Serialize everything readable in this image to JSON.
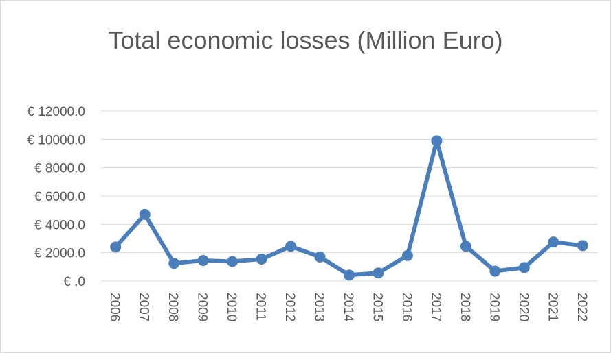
{
  "chart_data": {
    "type": "line",
    "title": "Total economic losses (Million Euro)",
    "xlabel": "",
    "ylabel": "",
    "categories": [
      "2006",
      "2007",
      "2008",
      "2009",
      "2010",
      "2011",
      "2012",
      "2013",
      "2014",
      "2015",
      "2016",
      "2017",
      "2018",
      "2019",
      "2020",
      "2021",
      "2022"
    ],
    "series": [
      {
        "values": [
          2400,
          4700,
          1250,
          1450,
          1380,
          1550,
          2450,
          1700,
          420,
          570,
          1800,
          9900,
          2450,
          700,
          950,
          2750,
          2500
        ]
      }
    ],
    "y_ticks": [
      {
        "value": 0,
        "label": "€ .0"
      },
      {
        "value": 2000,
        "label": "€ 2000.0"
      },
      {
        "value": 4000,
        "label": "€ 4000.0"
      },
      {
        "value": 6000,
        "label": "€ 6000.0"
      },
      {
        "value": 8000,
        "label": "€ 8000.0"
      },
      {
        "value": 10000,
        "label": "€ 10000.0"
      },
      {
        "value": 12000,
        "label": "€ 12000.0"
      }
    ],
    "ylim": [
      0,
      12000
    ],
    "grid": "horizontal",
    "legend": "none",
    "colors": {
      "line": "#4a7ebb",
      "grid": "#d9d9d9",
      "text": "#595959"
    }
  }
}
